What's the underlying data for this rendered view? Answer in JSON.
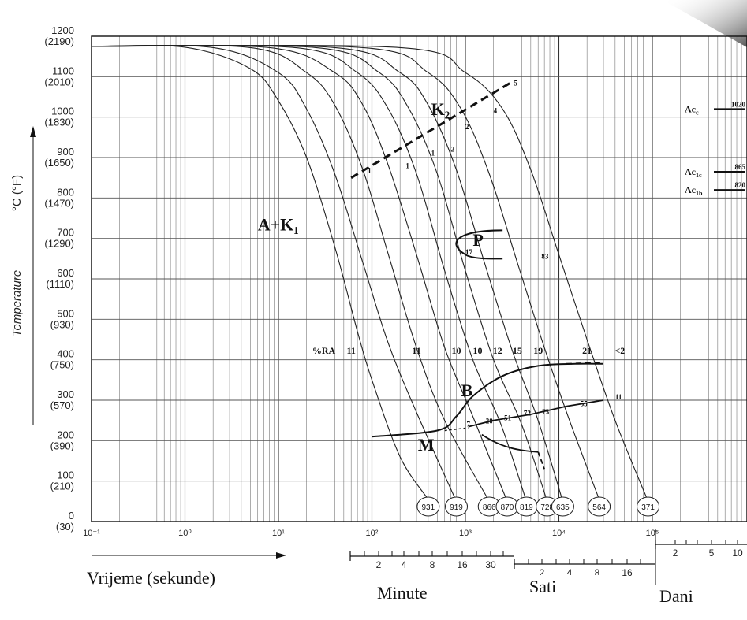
{
  "chart_data": {
    "type": "line",
    "title": "",
    "xlabel": "Vrijeme (sekunde)",
    "ylabel": "Temperature",
    "y_unit_label": "°C (°F)",
    "x_scale": "log",
    "xlim": [
      0.1,
      100000
    ],
    "ylim": [
      0,
      1200
    ],
    "grid": true,
    "x_ticks": [
      "10⁻¹",
      "10⁰",
      "10¹",
      "10²",
      "10³",
      "10⁴",
      "10⁵"
    ],
    "y_ticks": [
      {
        "c": "1200",
        "f": "(2190)"
      },
      {
        "c": "1100",
        "f": "(2010)"
      },
      {
        "c": "1000",
        "f": "(1830)"
      },
      {
        "c": "900",
        "f": "(1650)"
      },
      {
        "c": "800",
        "f": "(1470)"
      },
      {
        "c": "700",
        "f": "(1290)"
      },
      {
        "c": "600",
        "f": "(1110)"
      },
      {
        "c": "500",
        "f": "(930)"
      },
      {
        "c": "400",
        "f": "(750)"
      },
      {
        "c": "300",
        "f": "(570)"
      },
      {
        "c": "200",
        "f": "(390)"
      },
      {
        "c": "100",
        "f": "(210)"
      },
      {
        "c": "0",
        "f": "(30)"
      }
    ],
    "region_labels": [
      "A+K₁",
      "K₂",
      "P",
      "B",
      "M"
    ],
    "ac_lines": [
      {
        "label": "Ac_c",
        "sub": "c",
        "value": "1020",
        "temp": 1020
      },
      {
        "label": "Ac_1c",
        "sub": "1c",
        "value": "865",
        "temp": 865
      },
      {
        "label": "Ac_1b",
        "sub": "1b",
        "value": "820",
        "temp": 820
      }
    ],
    "cooling_curves": [
      {
        "hardness": "931",
        "x": [
          0.1,
          1,
          5,
          10,
          20,
          40,
          70,
          100,
          200,
          400
        ],
        "y": [
          1175,
          1173,
          1120,
          1040,
          900,
          680,
          470,
          350,
          160,
          55
        ]
      },
      {
        "hardness": "919",
        "x": [
          0.1,
          2,
          10,
          20,
          40,
          80,
          150,
          300,
          800
        ],
        "y": [
          1175,
          1172,
          1110,
          1020,
          860,
          640,
          440,
          270,
          50
        ]
      },
      {
        "hardness": "866",
        "x": [
          0.1,
          5,
          20,
          40,
          80,
          150,
          300,
          600,
          1800
        ],
        "y": [
          1175,
          1172,
          1110,
          1030,
          870,
          660,
          430,
          250,
          50
        ]
      },
      {
        "hardness": "870",
        "x": [
          0.1,
          8,
          40,
          80,
          150,
          300,
          600,
          1200,
          2800
        ],
        "y": [
          1175,
          1172,
          1110,
          1030,
          880,
          660,
          430,
          260,
          50
        ]
      },
      {
        "hardness": "819",
        "x": [
          0.1,
          15,
          70,
          150,
          300,
          600,
          1200,
          2400,
          4500
        ],
        "y": [
          1175,
          1172,
          1110,
          1020,
          860,
          620,
          400,
          240,
          50
        ]
      },
      {
        "hardness": "728",
        "x": [
          0.1,
          25,
          120,
          250,
          500,
          1000,
          2000,
          4000,
          7500
        ],
        "y": [
          1175,
          1172,
          1110,
          1020,
          860,
          620,
          400,
          240,
          50
        ]
      },
      {
        "hardness": "635",
        "x": [
          0.1,
          40,
          200,
          400,
          800,
          1600,
          3200,
          6000,
          11000
        ],
        "y": [
          1175,
          1172,
          1110,
          1030,
          870,
          640,
          420,
          250,
          50
        ]
      },
      {
        "hardness": "564",
        "x": [
          0.1,
          80,
          400,
          900,
          1800,
          3600,
          7000,
          13000,
          27000
        ],
        "y": [
          1175,
          1172,
          1110,
          1020,
          860,
          640,
          430,
          250,
          55
        ]
      },
      {
        "hardness": "371",
        "x": [
          0.1,
          200,
          1000,
          2500,
          5000,
          10000,
          20000,
          40000,
          90000
        ],
        "y": [
          1175,
          1172,
          1110,
          1020,
          870,
          660,
          450,
          250,
          50
        ]
      }
    ],
    "ra_label": "%RA",
    "ra_values": [
      "11",
      "11",
      "10",
      "10",
      "12",
      "15",
      "19",
      "21",
      "<2"
    ],
    "k2_line": {
      "x": [
        60,
        3300
      ],
      "y": [
        850,
        1090
      ]
    },
    "k2_marks": [
      "1",
      "1",
      "1",
      "2",
      "2",
      "4",
      "5"
    ],
    "pearlite": {
      "start": {
        "x": [
          2500,
          1000,
          1300
        ],
        "y": [
          720,
          690,
          650
        ]
      },
      "marks": [
        "17",
        "83"
      ]
    },
    "bainite": {
      "x": [
        100,
        500,
        800,
        1200,
        2500,
        6000,
        15000,
        30000
      ],
      "y": [
        210,
        225,
        260,
        310,
        360,
        385,
        390,
        390
      ]
    },
    "bainite_marks": [
      "7",
      "20",
      "51",
      "72",
      "75",
      "55",
      "11"
    ],
    "martensite_start": {
      "x": [
        600,
        1000,
        1500,
        3000,
        6000
      ],
      "y": [
        230,
        230,
        220,
        180,
        170
      ]
    }
  },
  "time_scales": [
    {
      "name": "Minute",
      "ticks": [
        "2",
        "4",
        "8",
        "16",
        "30"
      ]
    },
    {
      "name": "Sati",
      "ticks": [
        "2",
        "4",
        "8",
        "16"
      ]
    },
    {
      "name": "Dani",
      "ticks": [
        "2",
        "5",
        "10"
      ]
    }
  ]
}
